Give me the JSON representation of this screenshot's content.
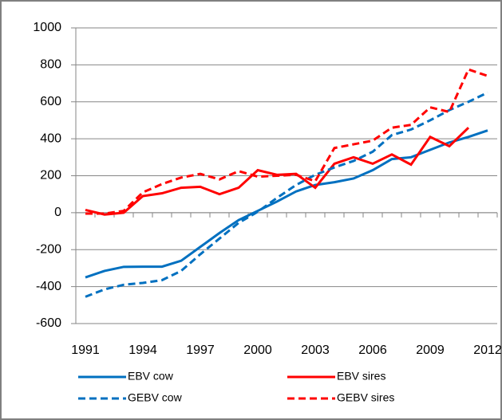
{
  "chart_data": {
    "type": "line",
    "categories": [
      "1991",
      null,
      null,
      "1994",
      null,
      null,
      "1997",
      null,
      null,
      "2000",
      null,
      null,
      "2003",
      null,
      null,
      "2006",
      null,
      null,
      "2009",
      null,
      null,
      "2012"
    ],
    "ylim": [
      -600,
      1000
    ],
    "yticks": [
      -600,
      -400,
      -200,
      0,
      200,
      400,
      600,
      800,
      1000
    ],
    "grid": true,
    "series": [
      {
        "name": "EBV cow",
        "color": "#0070c0",
        "dashed": false,
        "values": [
          -350,
          -315,
          -293,
          -292,
          -292,
          -260,
          -185,
          -110,
          -40,
          10,
          60,
          115,
          150,
          165,
          185,
          230,
          290,
          300,
          340,
          380,
          410,
          445
        ]
      },
      {
        "name": "EBV sires",
        "color": "#ff0000",
        "dashed": false,
        "values": [
          15,
          -10,
          0,
          90,
          105,
          135,
          140,
          100,
          135,
          230,
          205,
          210,
          135,
          265,
          300,
          265,
          315,
          260,
          410,
          360,
          460,
          null
        ]
      },
      {
        "name": "GEBV cow",
        "color": "#0070c0",
        "dashed": true,
        "values": [
          -455,
          -415,
          -390,
          -380,
          -365,
          -315,
          -225,
          -140,
          -55,
          5,
          80,
          150,
          205,
          245,
          280,
          330,
          420,
          450,
          500,
          555,
          600,
          650
        ]
      },
      {
        "name": "GEBV sires",
        "color": "#ff0000",
        "dashed": true,
        "values": [
          -5,
          -5,
          10,
          110,
          155,
          190,
          210,
          180,
          225,
          195,
          200,
          205,
          170,
          350,
          370,
          390,
          460,
          475,
          570,
          545,
          775,
          740
        ]
      }
    ]
  }
}
